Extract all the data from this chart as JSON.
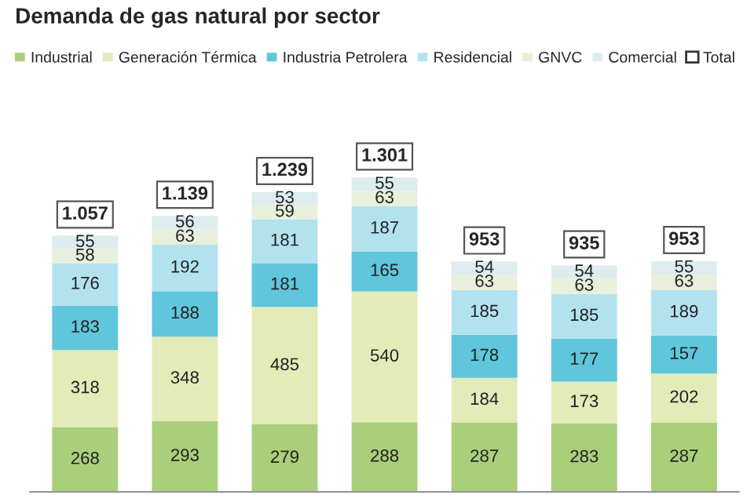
{
  "chart_data": {
    "type": "bar",
    "title": "Demanda de gas natural por sector",
    "stacked": true,
    "data_labels": true,
    "categories": [
      null,
      null,
      null,
      null,
      null,
      null,
      null
    ],
    "series": [
      {
        "name": "Industrial",
        "color": "#a9cf7a",
        "values": [
          268,
          293,
          279,
          288,
          287,
          283,
          287
        ]
      },
      {
        "name": "Generación Térmica",
        "color": "#e3ebb8",
        "values": [
          318,
          348,
          485,
          540,
          184,
          173,
          202
        ]
      },
      {
        "name": "Industria Petrolera",
        "color": "#5fc6dc",
        "values": [
          183,
          188,
          181,
          165,
          178,
          177,
          157
        ]
      },
      {
        "name": "Residencial",
        "color": "#b3e2ef",
        "values": [
          176,
          192,
          181,
          187,
          185,
          185,
          189
        ]
      },
      {
        "name": "GNVC",
        "color": "#e8f0dc",
        "values": [
          58,
          63,
          59,
          63,
          63,
          63,
          63
        ]
      },
      {
        "name": "Comercial",
        "color": "#dcecef",
        "values": [
          55,
          56,
          53,
          55,
          54,
          54,
          55
        ]
      }
    ],
    "totals": [
      "1.057",
      "1.139",
      "1.239",
      "1.301",
      "953",
      "935",
      "953"
    ],
    "annotations": [
      "Total"
    ],
    "legend": "top left",
    "grid": false
  }
}
